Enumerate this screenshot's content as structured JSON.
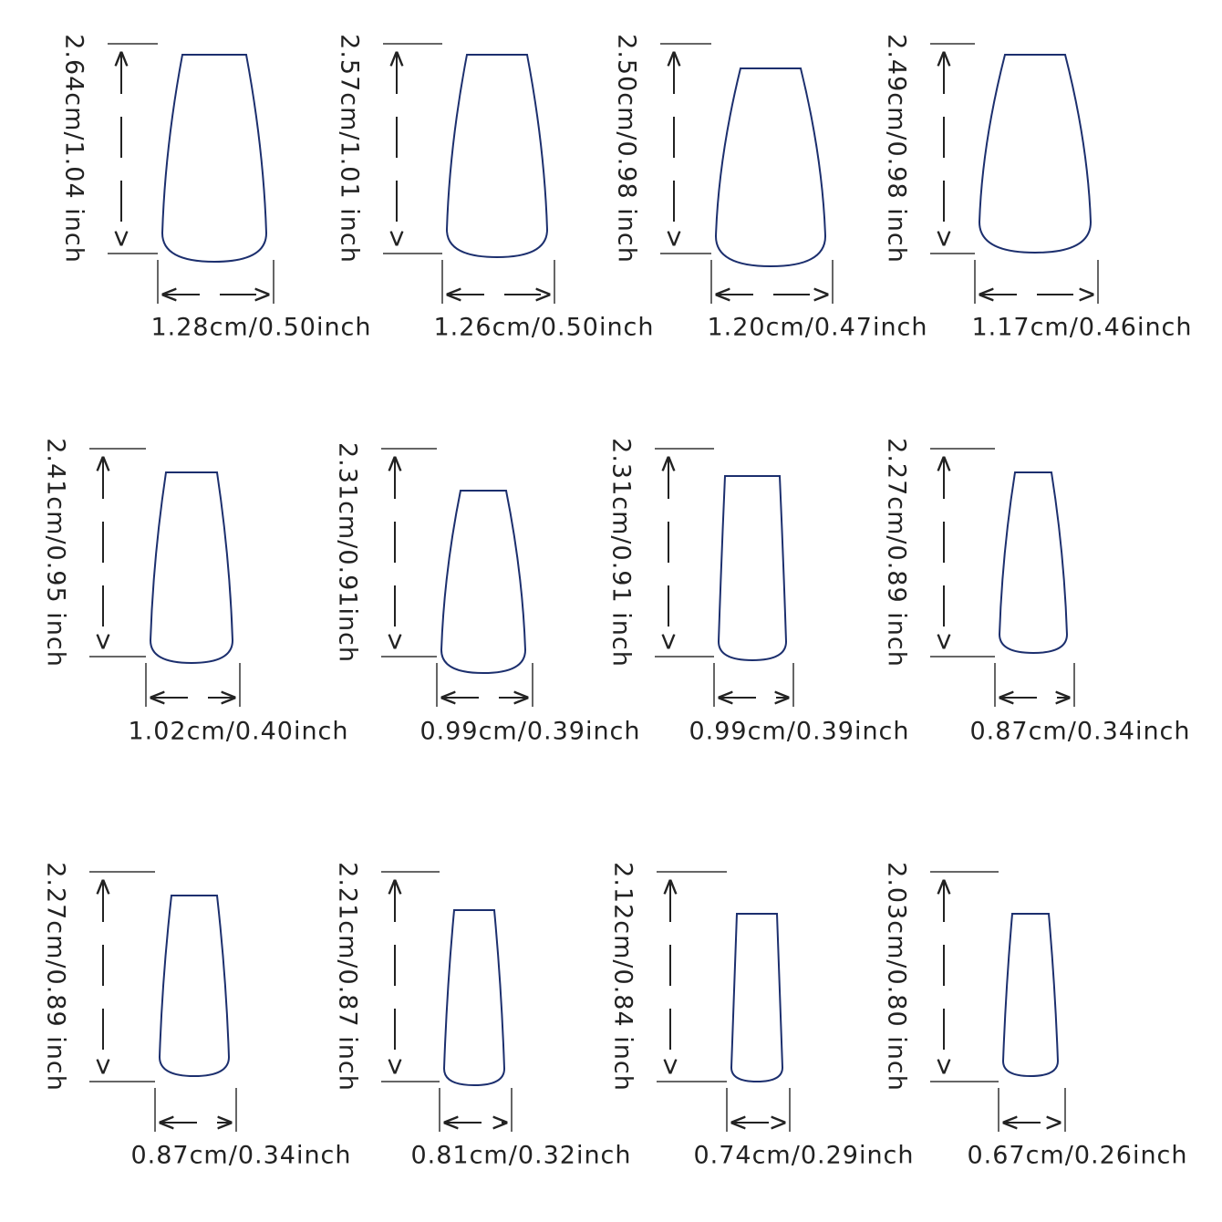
{
  "nails": [
    {
      "height": "2.64cm/1.04 inch",
      "width": "1.28cm/0.50inch"
    },
    {
      "height": "2.57cm/1.01 inch",
      "width": "1.26cm/0.50inch"
    },
    {
      "height": "2.50cm/0.98 inch",
      "width": "1.20cm/0.47inch"
    },
    {
      "height": "2.49cm/0.98 inch",
      "width": "1.17cm/0.46inch"
    },
    {
      "height": "2.41cm/0.95 inch",
      "width": "1.02cm/0.40inch"
    },
    {
      "height": "2.31cm/0.91inch",
      "width": "0.99cm/0.39inch"
    },
    {
      "height": "2.31cm/0.91 inch",
      "width": "0.99cm/0.39inch"
    },
    {
      "height": "2.27cm/0.89 inch",
      "width": "0.87cm/0.34inch"
    },
    {
      "height": "2.27cm/0.89 inch",
      "width": "0.87cm/0.34inch"
    },
    {
      "height": "2.21cm/0.87 inch",
      "width": "0.81cm/0.32inch"
    },
    {
      "height": "2.12cm/0.84 inch",
      "width": "0.74cm/0.29inch"
    },
    {
      "height": "2.03cm/0.80 inch",
      "width": "0.67cm/0.26inch"
    }
  ]
}
